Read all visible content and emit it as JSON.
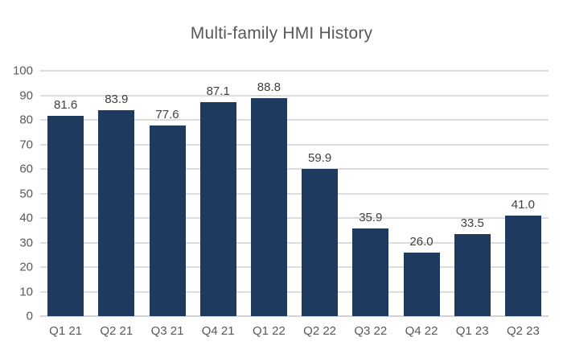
{
  "chart_data": {
    "type": "bar",
    "title": "Multi-family HMI History",
    "categories": [
      "Q1 21",
      "Q2 21",
      "Q3 21",
      "Q4 21",
      "Q1 22",
      "Q2 22",
      "Q3 22",
      "Q4 22",
      "Q1 23",
      "Q2 23"
    ],
    "values": [
      81.6,
      83.9,
      77.6,
      87.1,
      88.8,
      59.9,
      35.9,
      26.0,
      33.5,
      41.0
    ],
    "data_labels": [
      "81.6",
      "83.9",
      "77.6",
      "87.1",
      "88.8",
      "59.9",
      "35.9",
      "26.0",
      "33.5",
      "41.0"
    ],
    "xlabel": "",
    "ylabel": "",
    "ylim": [
      0,
      100
    ],
    "ytick_step": 10,
    "ytick_labels": [
      "0",
      "10",
      "20",
      "30",
      "40",
      "50",
      "60",
      "70",
      "80",
      "90",
      "100"
    ],
    "grid": true,
    "legend": "none",
    "colors": {
      "bar_fill": "#1F3A5F",
      "title_text": "#595959",
      "axis_text": "#595959",
      "data_label_text": "#404040",
      "gridline": "#DCDCDC",
      "axis_line": "#D3D3D3",
      "background": "#FFFFFF"
    }
  }
}
